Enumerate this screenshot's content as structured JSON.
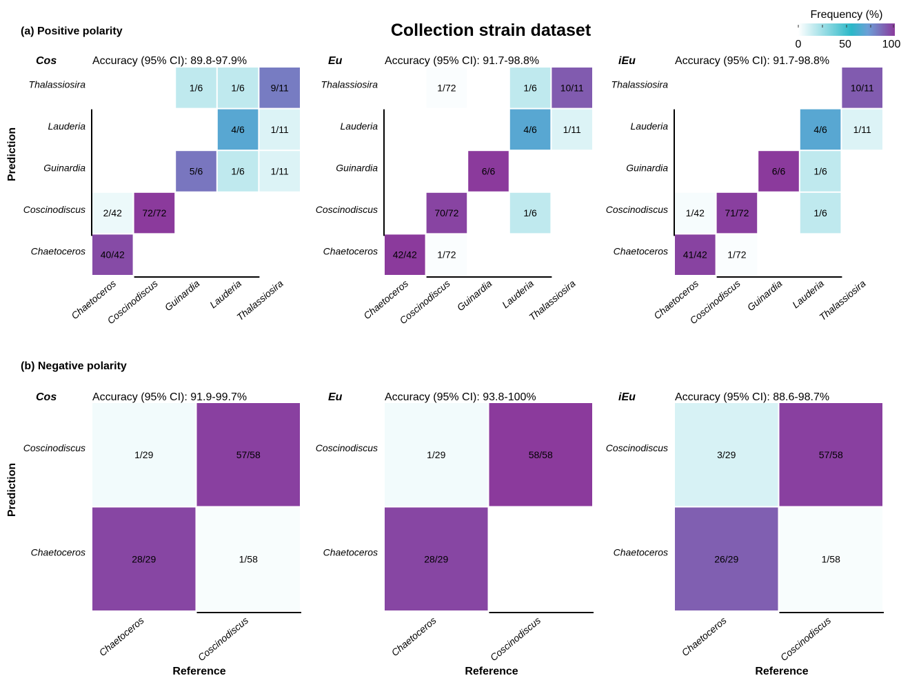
{
  "title": "Collection strain dataset",
  "legend": {
    "title": "Frequency (%)",
    "ticks": [
      0,
      50,
      100
    ],
    "colors": [
      "#ffffff",
      "#2bb8c8",
      "#6c9fd6",
      "#8b3a9c"
    ]
  },
  "axis_labels": {
    "prediction": "Prediction",
    "reference": "Reference"
  },
  "chart_data": [
    {
      "type": "heatmap",
      "panel": "(a) Positive polarity",
      "model": "Cos",
      "accuracy": "Accuracy (95% CI): 89.8-97.9%",
      "reference_classes": [
        "Chaetoceros",
        "Coscinodiscus",
        "Guinardia",
        "Lauderia",
        "Thalassiosira"
      ],
      "prediction_classes": [
        "Thalassiosira",
        "Lauderia",
        "Guinardia",
        "Coscinodiscus",
        "Chaetoceros"
      ],
      "cells": [
        {
          "pred": "Thalassiosira",
          "ref": "Guinardia",
          "label": "1/6",
          "freq": 16.7
        },
        {
          "pred": "Thalassiosira",
          "ref": "Lauderia",
          "label": "1/6",
          "freq": 16.7
        },
        {
          "pred": "Thalassiosira",
          "ref": "Thalassiosira",
          "label": "9/11",
          "freq": 81.8
        },
        {
          "pred": "Lauderia",
          "ref": "Lauderia",
          "label": "4/6",
          "freq": 66.7
        },
        {
          "pred": "Lauderia",
          "ref": "Thalassiosira",
          "label": "1/11",
          "freq": 9.1
        },
        {
          "pred": "Guinardia",
          "ref": "Guinardia",
          "label": "5/6",
          "freq": 83.3
        },
        {
          "pred": "Guinardia",
          "ref": "Lauderia",
          "label": "1/6",
          "freq": 16.7
        },
        {
          "pred": "Guinardia",
          "ref": "Thalassiosira",
          "label": "1/11",
          "freq": 9.1
        },
        {
          "pred": "Coscinodiscus",
          "ref": "Chaetoceros",
          "label": "2/42",
          "freq": 4.8
        },
        {
          "pred": "Coscinodiscus",
          "ref": "Coscinodiscus",
          "label": "72/72",
          "freq": 100
        },
        {
          "pred": "Chaetoceros",
          "ref": "Chaetoceros",
          "label": "40/42",
          "freq": 95.2
        }
      ]
    },
    {
      "type": "heatmap",
      "panel": "",
      "model": "Eu",
      "accuracy": "Accuracy (95% CI): 91.7-98.8%",
      "reference_classes": [
        "Chaetoceros",
        "Coscinodiscus",
        "Guinardia",
        "Lauderia",
        "Thalassiosira"
      ],
      "prediction_classes": [
        "Thalassiosira",
        "Lauderia",
        "Guinardia",
        "Coscinodiscus",
        "Chaetoceros"
      ],
      "cells": [
        {
          "pred": "Thalassiosira",
          "ref": "Coscinodiscus",
          "label": "1/72",
          "freq": 1.4
        },
        {
          "pred": "Thalassiosira",
          "ref": "Lauderia",
          "label": "1/6",
          "freq": 16.7
        },
        {
          "pred": "Thalassiosira",
          "ref": "Thalassiosira",
          "label": "10/11",
          "freq": 90.9
        },
        {
          "pred": "Lauderia",
          "ref": "Lauderia",
          "label": "4/6",
          "freq": 66.7
        },
        {
          "pred": "Lauderia",
          "ref": "Thalassiosira",
          "label": "1/11",
          "freq": 9.1
        },
        {
          "pred": "Guinardia",
          "ref": "Guinardia",
          "label": "6/6",
          "freq": 100
        },
        {
          "pred": "Coscinodiscus",
          "ref": "Coscinodiscus",
          "label": "70/72",
          "freq": 97.2
        },
        {
          "pred": "Coscinodiscus",
          "ref": "Lauderia",
          "label": "1/6",
          "freq": 16.7
        },
        {
          "pred": "Chaetoceros",
          "ref": "Chaetoceros",
          "label": "42/42",
          "freq": 100
        },
        {
          "pred": "Chaetoceros",
          "ref": "Coscinodiscus",
          "label": "1/72",
          "freq": 1.4
        }
      ]
    },
    {
      "type": "heatmap",
      "panel": "",
      "model": "iEu",
      "accuracy": "Accuracy (95% CI): 91.7-98.8%",
      "reference_classes": [
        "Chaetoceros",
        "Coscinodiscus",
        "Guinardia",
        "Lauderia",
        "Thalassiosira"
      ],
      "prediction_classes": [
        "Thalassiosira",
        "Lauderia",
        "Guinardia",
        "Coscinodiscus",
        "Chaetoceros"
      ],
      "cells": [
        {
          "pred": "Thalassiosira",
          "ref": "Thalassiosira",
          "label": "10/11",
          "freq": 90.9
        },
        {
          "pred": "Lauderia",
          "ref": "Lauderia",
          "label": "4/6",
          "freq": 66.7
        },
        {
          "pred": "Lauderia",
          "ref": "Thalassiosira",
          "label": "1/11",
          "freq": 9.1
        },
        {
          "pred": "Guinardia",
          "ref": "Guinardia",
          "label": "6/6",
          "freq": 100
        },
        {
          "pred": "Guinardia",
          "ref": "Lauderia",
          "label": "1/6",
          "freq": 16.7
        },
        {
          "pred": "Coscinodiscus",
          "ref": "Chaetoceros",
          "label": "1/42",
          "freq": 2.4
        },
        {
          "pred": "Coscinodiscus",
          "ref": "Coscinodiscus",
          "label": "71/72",
          "freq": 98.6
        },
        {
          "pred": "Coscinodiscus",
          "ref": "Lauderia",
          "label": "1/6",
          "freq": 16.7
        },
        {
          "pred": "Chaetoceros",
          "ref": "Chaetoceros",
          "label": "41/42",
          "freq": 97.6
        },
        {
          "pred": "Chaetoceros",
          "ref": "Coscinodiscus",
          "label": "1/72",
          "freq": 1.4
        }
      ]
    },
    {
      "type": "heatmap",
      "panel": "(b) Negative polarity",
      "model": "Cos",
      "accuracy": "Accuracy (95% CI): 91.9-99.7%",
      "reference_classes": [
        "Chaetoceros",
        "Coscinodiscus"
      ],
      "prediction_classes": [
        "Coscinodiscus",
        "Chaetoceros"
      ],
      "cells": [
        {
          "pred": "Coscinodiscus",
          "ref": "Chaetoceros",
          "label": "1/29",
          "freq": 3.4
        },
        {
          "pred": "Coscinodiscus",
          "ref": "Coscinodiscus",
          "label": "57/58",
          "freq": 98.3
        },
        {
          "pred": "Chaetoceros",
          "ref": "Chaetoceros",
          "label": "28/29",
          "freq": 96.6
        },
        {
          "pred": "Chaetoceros",
          "ref": "Coscinodiscus",
          "label": "1/58",
          "freq": 1.7
        }
      ]
    },
    {
      "type": "heatmap",
      "panel": "",
      "model": "Eu",
      "accuracy": "Accuracy (95% CI): 93.8-100%",
      "reference_classes": [
        "Chaetoceros",
        "Coscinodiscus"
      ],
      "prediction_classes": [
        "Coscinodiscus",
        "Chaetoceros"
      ],
      "cells": [
        {
          "pred": "Coscinodiscus",
          "ref": "Chaetoceros",
          "label": "1/29",
          "freq": 3.4
        },
        {
          "pred": "Coscinodiscus",
          "ref": "Coscinodiscus",
          "label": "58/58",
          "freq": 100
        },
        {
          "pred": "Chaetoceros",
          "ref": "Chaetoceros",
          "label": "28/29",
          "freq": 96.6
        }
      ]
    },
    {
      "type": "heatmap",
      "panel": "",
      "model": "iEu",
      "accuracy": "Accuracy (95% CI): 88.6-98.7%",
      "reference_classes": [
        "Chaetoceros",
        "Coscinodiscus"
      ],
      "prediction_classes": [
        "Coscinodiscus",
        "Chaetoceros"
      ],
      "cells": [
        {
          "pred": "Coscinodiscus",
          "ref": "Chaetoceros",
          "label": "3/29",
          "freq": 10.3
        },
        {
          "pred": "Coscinodiscus",
          "ref": "Coscinodiscus",
          "label": "57/58",
          "freq": 98.3
        },
        {
          "pred": "Chaetoceros",
          "ref": "Chaetoceros",
          "label": "26/29",
          "freq": 89.7
        },
        {
          "pred": "Chaetoceros",
          "ref": "Coscinodiscus",
          "label": "1/58",
          "freq": 1.7
        }
      ]
    }
  ]
}
